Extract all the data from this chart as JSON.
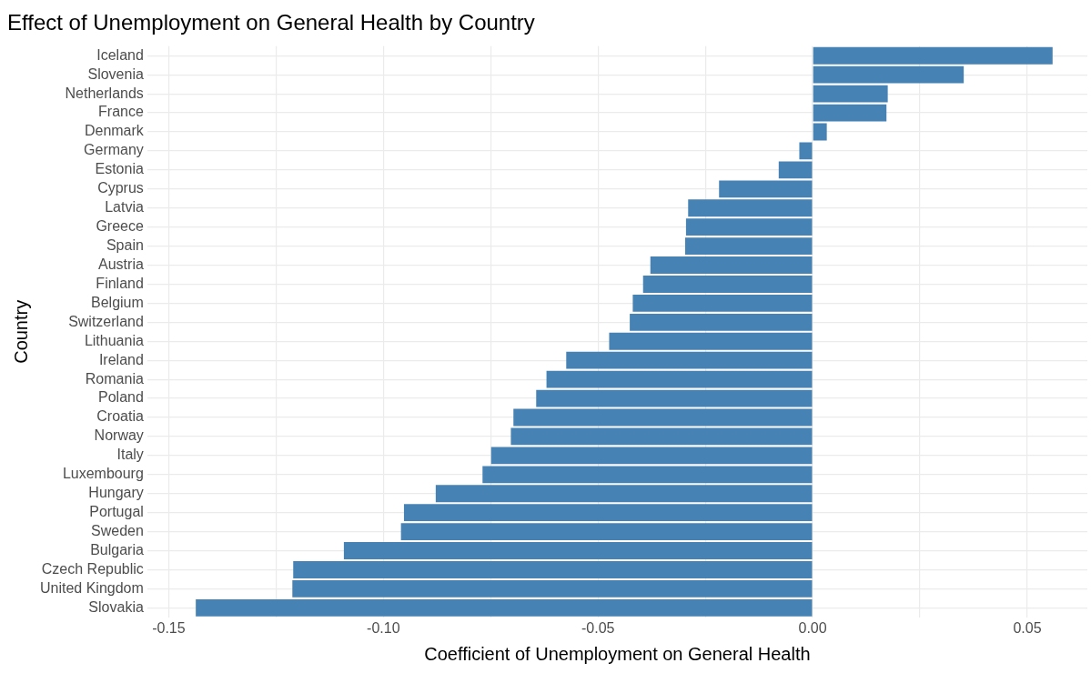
{
  "chart_data": {
    "type": "bar",
    "orientation": "horizontal",
    "title": "Effect of Unemployment on General Health by Country",
    "xlabel": "Coefficient of Unemployment on General Health",
    "ylabel": "Country",
    "categories": [
      "Iceland",
      "Slovenia",
      "Netherlands",
      "France",
      "Denmark",
      "Germany",
      "Estonia",
      "Cyprus",
      "Latvia",
      "Greece",
      "Spain",
      "Austria",
      "Finland",
      "Belgium",
      "Switzerland",
      "Lithuania",
      "Ireland",
      "Romania",
      "Poland",
      "Croatia",
      "Norway",
      "Italy",
      "Luxembourg",
      "Hungary",
      "Portugal",
      "Sweden",
      "Bulgaria",
      "Czech Republic",
      "United Kingdom",
      "Slovakia"
    ],
    "values": [
      0.0559,
      0.0352,
      0.0175,
      0.0172,
      0.0033,
      -0.0031,
      -0.0079,
      -0.0218,
      -0.029,
      -0.0295,
      -0.0297,
      -0.0378,
      -0.0395,
      -0.0419,
      -0.0426,
      -0.0474,
      -0.0574,
      -0.062,
      -0.0644,
      -0.0697,
      -0.0703,
      -0.0749,
      -0.0769,
      -0.0878,
      -0.0952,
      -0.0959,
      -0.1092,
      -0.121,
      -0.1212,
      -0.1437
    ],
    "color": "#4682b4",
    "xlim": [
      -0.155,
      0.064
    ],
    "xticks": [
      {
        "value": -0.15,
        "label": "-0.15"
      },
      {
        "value": -0.125,
        "label": null
      },
      {
        "value": -0.1,
        "label": "-0.10"
      },
      {
        "value": -0.075,
        "label": null
      },
      {
        "value": -0.05,
        "label": "-0.05"
      },
      {
        "value": -0.025,
        "label": null
      },
      {
        "value": 0,
        "label": "0.00"
      },
      {
        "value": 0.025,
        "label": null
      },
      {
        "value": 0.05,
        "label": "0.05"
      }
    ],
    "grid": true,
    "legend": false
  }
}
